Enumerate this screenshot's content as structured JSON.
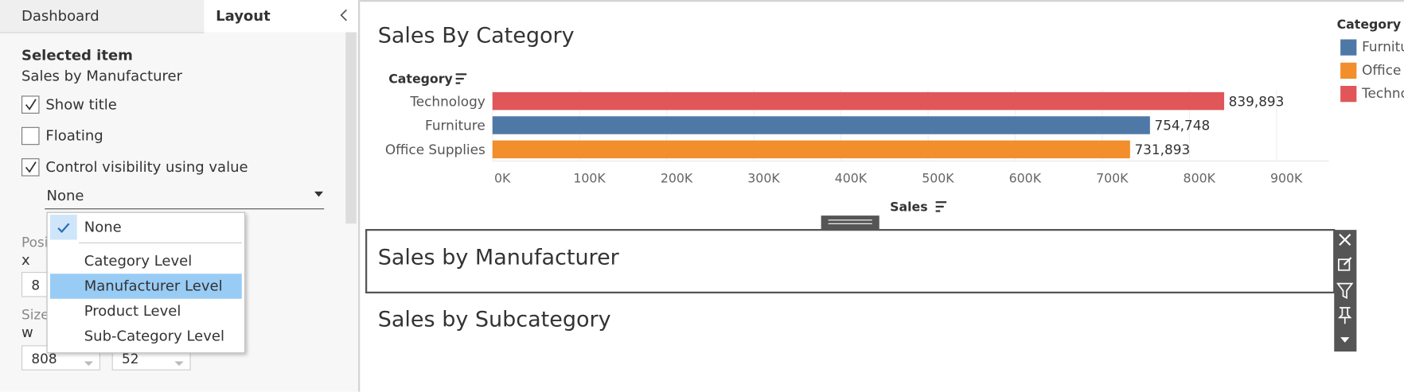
{
  "sidebar": {
    "tabs": [
      "Dashboard",
      "Layout"
    ],
    "section_title": "Selected item",
    "selected_item": "Sales by Manufacturer",
    "options": [
      {
        "label": "Show title",
        "checked": true
      },
      {
        "label": "Floating",
        "checked": false
      },
      {
        "label": "Control visibility using value",
        "checked": true
      }
    ],
    "visibility_value": "None",
    "menu": {
      "items": [
        "None",
        "Category Level",
        "Manufacturer Level",
        "Product Level",
        "Sub-Category Level"
      ],
      "selected_index": 0,
      "highlighted_index": 2
    },
    "position": {
      "label": "Position",
      "x_label": "x",
      "x_value": 8
    },
    "size": {
      "label": "Size",
      "w_label": "w",
      "w_value": 808,
      "h_value": 52
    }
  },
  "dashboard": {
    "zones": [
      "Sales by Manufacturer",
      "Sales by Subcategory"
    ]
  },
  "chart_data": {
    "type": "bar",
    "title": "Sales By Category",
    "category_axis_title": "Category",
    "value_axis_title": "Sales",
    "categories": [
      "Technology",
      "Furniture",
      "Office Supplies"
    ],
    "values": [
      839893,
      754748,
      731893
    ],
    "value_labels": [
      "839,893",
      "754,748",
      "731,893"
    ],
    "colors": [
      "#e15759",
      "#4e79a7",
      "#f28e2b"
    ],
    "xlim": [
      0,
      960000
    ],
    "xticks": [
      {
        "value": 0,
        "label": "0K"
      },
      {
        "value": 100000,
        "label": "100K"
      },
      {
        "value": 200000,
        "label": "200K"
      },
      {
        "value": 300000,
        "label": "300K"
      },
      {
        "value": 400000,
        "label": "400K"
      },
      {
        "value": 500000,
        "label": "500K"
      },
      {
        "value": 600000,
        "label": "600K"
      },
      {
        "value": 700000,
        "label": "700K"
      },
      {
        "value": 800000,
        "label": "800K"
      },
      {
        "value": 900000,
        "label": "900K"
      }
    ],
    "grid": true,
    "legend": {
      "title": "Category",
      "position": "right",
      "entries": [
        "Furniture",
        "Office Supplies",
        "Technology"
      ],
      "colors": [
        "#4e79a7",
        "#f28e2b",
        "#e15759"
      ]
    }
  }
}
